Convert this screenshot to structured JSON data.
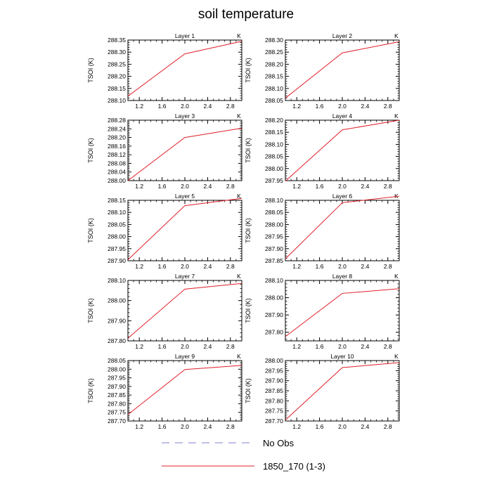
{
  "title": "soil temperature",
  "legend": [
    {
      "label": "No Obs",
      "color": "#8080d0",
      "dashed": true
    },
    {
      "label": "1850_170 (1-3)",
      "color": "#e0202a",
      "dashed": false
    }
  ],
  "chart_data": [
    {
      "type": "line",
      "title": "Layer 1",
      "units": "K",
      "ylabel": "TSOI  (K)",
      "xlim": [
        1.0,
        3.0
      ],
      "xticks": [
        "1.2",
        "1.6",
        "2.0",
        "2.4",
        "2.8"
      ],
      "ylim": [
        288.1,
        288.35
      ],
      "yticks": [
        "288.10",
        "288.15",
        "288.20",
        "288.25",
        "288.30",
        "288.35"
      ],
      "grid": false,
      "series": [
        {
          "name": "1850_170 (1-3)",
          "x": [
            1,
            2,
            3
          ],
          "y": [
            288.118,
            288.293,
            288.345
          ]
        }
      ]
    },
    {
      "type": "line",
      "title": "Layer 2",
      "units": "K",
      "ylabel": "TSOI  (K)",
      "xlim": [
        1.0,
        3.0
      ],
      "xticks": [
        "1.2",
        "1.6",
        "2.0",
        "2.4",
        "2.8"
      ],
      "ylim": [
        288.05,
        288.3
      ],
      "yticks": [
        "288.05",
        "288.10",
        "288.15",
        "288.20",
        "288.25",
        "288.30"
      ],
      "grid": false,
      "series": [
        {
          "name": "1850_170 (1-3)",
          "x": [
            1,
            2,
            3
          ],
          "y": [
            288.06,
            288.247,
            288.293
          ]
        }
      ]
    },
    {
      "type": "line",
      "title": "Layer 3",
      "units": "K",
      "ylabel": "TSOI  (K)",
      "xlim": [
        1.0,
        3.0
      ],
      "xticks": [
        "1.2",
        "1.6",
        "2.0",
        "2.4",
        "2.8"
      ],
      "ylim": [
        288.0,
        288.28
      ],
      "yticks": [
        "288.00",
        "288.04",
        "288.08",
        "288.12",
        "288.16",
        "288.20",
        "288.24",
        "288.28"
      ],
      "grid": false,
      "series": [
        {
          "name": "1850_170 (1-3)",
          "x": [
            1,
            2,
            3
          ],
          "y": [
            288.0,
            288.2,
            288.243
          ]
        }
      ]
    },
    {
      "type": "line",
      "title": "Layer 4",
      "units": "K",
      "ylabel": "TSOI  (K)",
      "xlim": [
        1.0,
        3.0
      ],
      "xticks": [
        "1.2",
        "1.6",
        "2.0",
        "2.4",
        "2.8"
      ],
      "ylim": [
        287.95,
        288.2
      ],
      "yticks": [
        "287.95",
        "288.00",
        "288.05",
        "288.10",
        "288.15",
        "288.20"
      ],
      "grid": false,
      "series": [
        {
          "name": "1850_170 (1-3)",
          "x": [
            1,
            2,
            3
          ],
          "y": [
            287.948,
            288.16,
            288.2
          ]
        }
      ]
    },
    {
      "type": "line",
      "title": "Layer 5",
      "units": "K",
      "ylabel": "TSOI  (K)",
      "xlim": [
        1.0,
        3.0
      ],
      "xticks": [
        "1.2",
        "1.6",
        "2.0",
        "2.4",
        "2.8"
      ],
      "ylim": [
        287.9,
        288.15
      ],
      "yticks": [
        "287.90",
        "287.95",
        "288.00",
        "288.05",
        "288.10",
        "288.15"
      ],
      "grid": false,
      "series": [
        {
          "name": "1850_170 (1-3)",
          "x": [
            1,
            2,
            3
          ],
          "y": [
            287.904,
            288.128,
            288.158
          ]
        }
      ]
    },
    {
      "type": "line",
      "title": "Layer 6",
      "units": "K",
      "ylabel": "TSOI  (K)",
      "xlim": [
        1.0,
        3.0
      ],
      "xticks": [
        "1.2",
        "1.6",
        "2.0",
        "2.4",
        "2.8"
      ],
      "ylim": [
        287.85,
        288.1
      ],
      "yticks": [
        "287.85",
        "287.90",
        "287.95",
        "288.00",
        "288.05",
        "288.10"
      ],
      "grid": false,
      "series": [
        {
          "name": "1850_170 (1-3)",
          "x": [
            1,
            2,
            3
          ],
          "y": [
            287.858,
            288.09,
            288.117
          ]
        }
      ]
    },
    {
      "type": "line",
      "title": "Layer 7",
      "units": "K",
      "ylabel": "TSOI  (K)",
      "xlim": [
        1.0,
        3.0
      ],
      "xticks": [
        "1.2",
        "1.6",
        "2.0",
        "2.4",
        "2.8"
      ],
      "ylim": [
        287.8,
        288.1
      ],
      "yticks": [
        "287.80",
        "287.90",
        "288.00",
        "288.10"
      ],
      "grid": false,
      "series": [
        {
          "name": "1850_170 (1-3)",
          "x": [
            1,
            2,
            3
          ],
          "y": [
            287.813,
            288.057,
            288.085
          ]
        }
      ]
    },
    {
      "type": "line",
      "title": "Layer 8",
      "units": "K",
      "ylabel": "TSOI  (K)",
      "xlim": [
        1.0,
        3.0
      ],
      "xticks": [
        "1.2",
        "1.6",
        "2.0",
        "2.4",
        "2.8"
      ],
      "ylim": [
        287.75,
        288.1
      ],
      "yticks": [
        "287.80",
        "287.90",
        "288.00",
        "288.10"
      ],
      "grid": false,
      "series": [
        {
          "name": "1850_170 (1-3)",
          "x": [
            1,
            2,
            3
          ],
          "y": [
            287.775,
            288.025,
            288.052
          ]
        }
      ]
    },
    {
      "type": "line",
      "title": "Layer 9",
      "units": "K",
      "ylabel": "TSOI  (K)",
      "xlim": [
        1.0,
        3.0
      ],
      "xticks": [
        "1.2",
        "1.6",
        "2.0",
        "2.4",
        "2.8"
      ],
      "ylim": [
        287.7,
        288.05
      ],
      "yticks": [
        "287.70",
        "287.75",
        "287.80",
        "287.85",
        "287.90",
        "287.95",
        "288.00",
        "288.05"
      ],
      "grid": false,
      "series": [
        {
          "name": "1850_170 (1-3)",
          "x": [
            1,
            2,
            3
          ],
          "y": [
            287.737,
            287.998,
            288.022
          ]
        }
      ]
    },
    {
      "type": "line",
      "title": "Layer 10",
      "units": "K",
      "ylabel": "TSOI  (K)",
      "xlim": [
        1.0,
        3.0
      ],
      "xticks": [
        "1.2",
        "1.6",
        "2.0",
        "2.4",
        "2.8"
      ],
      "ylim": [
        287.7,
        288.0
      ],
      "yticks": [
        "287.70",
        "287.75",
        "287.80",
        "287.85",
        "287.90",
        "287.95",
        "288.00"
      ],
      "grid": false,
      "series": [
        {
          "name": "1850_170 (1-3)",
          "x": [
            1,
            2,
            3
          ],
          "y": [
            287.705,
            287.965,
            287.99
          ]
        }
      ]
    }
  ]
}
